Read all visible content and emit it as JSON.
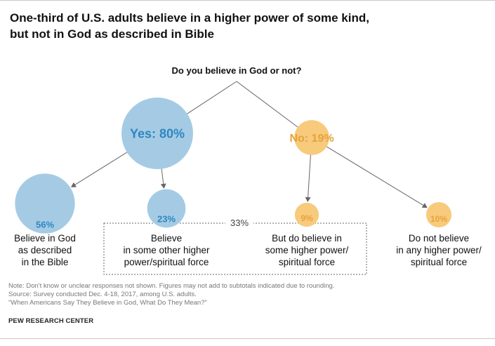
{
  "title": {
    "line1": "One-third of U.S. adults believe in a higher power of some kind,",
    "line2": "but not in God as described in Bible"
  },
  "colors": {
    "yes": "#a5cbe4",
    "yes_text": "#2e86c1",
    "no": "#f7ca7c",
    "no_text": "#e8a33a",
    "connector": "#666666",
    "dotted_box": "#666666"
  },
  "chart_data": {
    "type": "tree",
    "question": "Do you believe in God or not?",
    "nodes": [
      {
        "id": "yes",
        "parent": "root",
        "label": "Yes: 80%",
        "value": 80,
        "group": "yes"
      },
      {
        "id": "no",
        "parent": "root",
        "label": "No: 19%",
        "value": 19,
        "group": "no"
      },
      {
        "id": "bible",
        "parent": "yes",
        "pct_label": "56%",
        "value": 56,
        "group": "yes",
        "desc": [
          "Believe in God",
          "as described",
          "in the Bible"
        ]
      },
      {
        "id": "other",
        "parent": "yes",
        "pct_label": "23%",
        "value": 23,
        "group": "yes",
        "desc": [
          "Believe",
          "in some other higher",
          "power/spiritual force"
        ]
      },
      {
        "id": "higher",
        "parent": "no",
        "pct_label": "9%",
        "value": 9,
        "group": "no",
        "desc": [
          "But do believe in",
          "some higher power/",
          "spiritual force"
        ]
      },
      {
        "id": "none",
        "parent": "no",
        "pct_label": "10%",
        "value": 10,
        "group": "no",
        "desc": [
          "Do not believe",
          "in any higher power/",
          "spiritual force"
        ]
      }
    ],
    "bracket": {
      "label": "33%",
      "value": 33,
      "members": [
        "other",
        "higher"
      ]
    }
  },
  "notes": [
    "Note: Don't know or unclear responses not shown. Figures may not add to subtotals indicated due to rounding.",
    "Source: Survey conducted Dec. 4-18, 2017, among U.S. adults.",
    "“When Americans Say They Believe in God, What Do They Mean?”"
  ],
  "brand": "PEW RESEARCH CENTER"
}
